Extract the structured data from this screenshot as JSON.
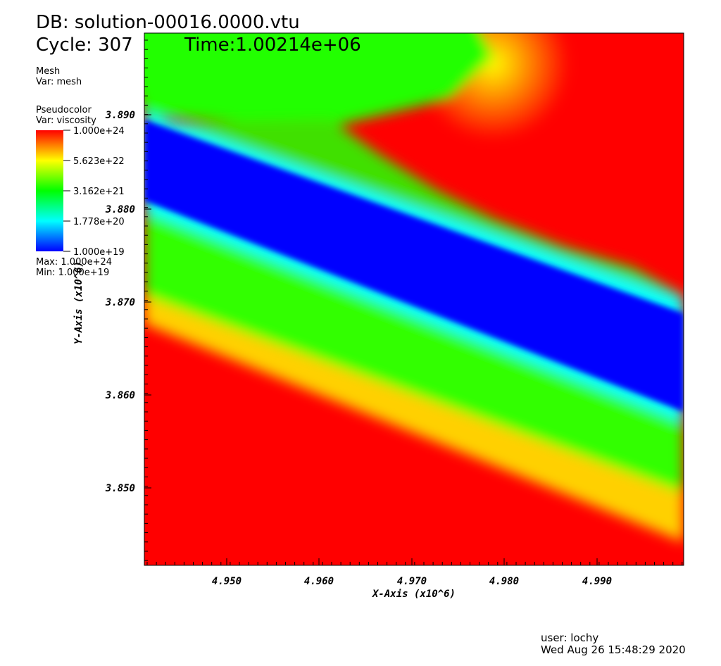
{
  "header": {
    "db": "DB: solution-00016.0000.vtu",
    "cycle": "Cycle: 307",
    "time": "Time:1.00214e+06"
  },
  "legend": {
    "mesh_title": "Mesh",
    "mesh_var": "Var: mesh",
    "plot_title": "Pseudocolor",
    "plot_var": "Var: viscosity",
    "labels": [
      "1.000e+24",
      "5.623e+22",
      "3.162e+21",
      "1.778e+20",
      "1.000e+19"
    ],
    "max": "Max:  1.000e+24",
    "min": "Min:  1.000e+19"
  },
  "axes": {
    "x_title": "X-Axis (x10^6)",
    "y_title": "Y-Axis (x10^6)",
    "x_ticks": [
      "4.950",
      "4.960",
      "4.970",
      "4.980",
      "4.990"
    ],
    "y_ticks": [
      "3.890",
      "3.880",
      "3.870",
      "3.860",
      "3.850"
    ]
  },
  "footer": {
    "user": "user: lochy",
    "date": "Wed Aug 26 15:48:29 2020"
  }
}
